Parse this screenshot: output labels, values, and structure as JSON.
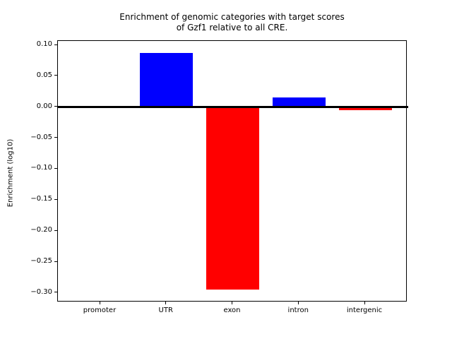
{
  "chart_data": {
    "type": "bar",
    "title_lines": [
      "Enrichment of genomic categories with target scores",
      "of Gzf1 relative to all CRE."
    ],
    "ylabel": "Enrichment (log10)",
    "xlabel": "",
    "categories": [
      "promoter",
      "UTR",
      "exon",
      "intron",
      "intergenic"
    ],
    "values": [
      0.0,
      0.088,
      -0.295,
      0.016,
      -0.005
    ],
    "bar_colors": [
      "#0000ff",
      "#0000ff",
      "#ff0000",
      "#0000ff",
      "#ff0000"
    ],
    "positive_color": "#0000ff",
    "negative_color": "#ff0000",
    "yticks": {
      "values": [
        0.1,
        0.05,
        0.0,
        -0.05,
        -0.1,
        -0.15,
        -0.2,
        -0.25,
        -0.3
      ],
      "labels": [
        "0.10",
        "0.05",
        "0.00",
        "−0.05",
        "−0.10",
        "−0.15",
        "−0.20",
        "−0.25",
        "−0.30"
      ]
    },
    "ylim": [
      -0.315,
      0.107
    ],
    "xlim": [
      -0.64,
      4.64
    ],
    "bar_width_units": 0.8,
    "zero_line": {
      "value": 0.0,
      "color": "#000000"
    },
    "grid": false,
    "legend": "none",
    "background_color": "#ffffff",
    "text_color": "#000000"
  }
}
